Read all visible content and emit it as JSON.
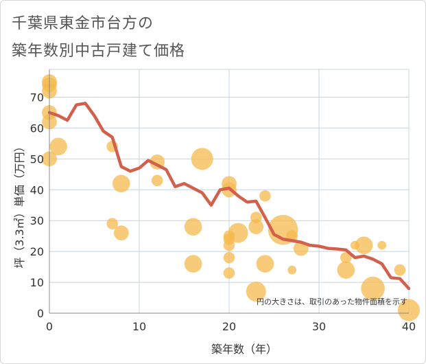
{
  "chart_data": {
    "type": "scatter",
    "title_lines": [
      "千葉県東金市台方の",
      "築年数別中古戸建て価格"
    ],
    "xlabel": "築年数（年）",
    "ylabel": "坪（3.3㎡）単価（万円）",
    "xlim": [
      0,
      40
    ],
    "ylim": [
      0,
      79
    ],
    "x_ticks": [
      0,
      10,
      20,
      30,
      40
    ],
    "y_ticks": [
      0,
      10,
      20,
      30,
      40,
      50,
      60,
      70
    ],
    "grid": true,
    "note": "円の大きさは、取引のあった物件面積を示す",
    "colors": {
      "bubble": "#f5b94d",
      "line": "#d2604c",
      "grid": "#c5d3e0",
      "axis": "#888888"
    },
    "series": [
      {
        "type": "bubble",
        "points": [
          {
            "x": 0,
            "y": 75,
            "size": 2
          },
          {
            "x": 0,
            "y": 74,
            "size": 2
          },
          {
            "x": 0,
            "y": 72,
            "size": 2
          },
          {
            "x": 0,
            "y": 65,
            "size": 2
          },
          {
            "x": 0,
            "y": 62,
            "size": 2
          },
          {
            "x": 0,
            "y": 50,
            "size": 2
          },
          {
            "x": 1,
            "y": 54,
            "size": 3
          },
          {
            "x": 7,
            "y": 54,
            "size": 1
          },
          {
            "x": 7,
            "y": 29,
            "size": 1
          },
          {
            "x": 8,
            "y": 42,
            "size": 3
          },
          {
            "x": 8,
            "y": 26,
            "size": 2
          },
          {
            "x": 12,
            "y": 49,
            "size": 2
          },
          {
            "x": 12,
            "y": 43,
            "size": 1
          },
          {
            "x": 16,
            "y": 28,
            "size": 3
          },
          {
            "x": 16,
            "y": 16,
            "size": 3
          },
          {
            "x": 17,
            "y": 50,
            "size": 5
          },
          {
            "x": 20,
            "y": 42,
            "size": 2
          },
          {
            "x": 20,
            "y": 40,
            "size": 2
          },
          {
            "x": 20,
            "y": 25,
            "size": 1
          },
          {
            "x": 20,
            "y": 24,
            "size": 1
          },
          {
            "x": 20,
            "y": 22,
            "size": 1
          },
          {
            "x": 20,
            "y": 18,
            "size": 1
          },
          {
            "x": 20,
            "y": 13,
            "size": 1
          },
          {
            "x": 21,
            "y": 26,
            "size": 4
          },
          {
            "x": 23,
            "y": 31,
            "size": 1
          },
          {
            "x": 23,
            "y": 28,
            "size": 2
          },
          {
            "x": 23,
            "y": 7,
            "size": 4
          },
          {
            "x": 24,
            "y": 38,
            "size": 1
          },
          {
            "x": 24,
            "y": 16,
            "size": 3
          },
          {
            "x": 26,
            "y": 27,
            "size": 10
          },
          {
            "x": 27,
            "y": 25,
            "size": 1
          },
          {
            "x": 27,
            "y": 14,
            "size": 0.5
          },
          {
            "x": 28,
            "y": 21,
            "size": 2
          },
          {
            "x": 33,
            "y": 18,
            "size": 1
          },
          {
            "x": 33,
            "y": 14,
            "size": 3
          },
          {
            "x": 34,
            "y": 22,
            "size": 0.5
          },
          {
            "x": 35,
            "y": 22,
            "size": 3
          },
          {
            "x": 36,
            "y": 8,
            "size": 6
          },
          {
            "x": 37,
            "y": 22,
            "size": 0.5
          },
          {
            "x": 39,
            "y": 14,
            "size": 1
          },
          {
            "x": 40,
            "y": 1,
            "size": 5
          }
        ]
      },
      {
        "type": "line",
        "x": [
          0,
          1,
          2,
          3,
          4,
          5,
          6,
          7,
          8,
          9,
          10,
          11,
          12,
          13,
          14,
          15,
          16,
          17,
          18,
          19,
          20,
          21,
          22,
          23,
          24,
          25,
          26,
          27,
          28,
          29,
          30,
          31,
          32,
          33,
          34,
          35,
          36,
          37,
          38,
          39,
          40
        ],
        "y": [
          65,
          64,
          62.5,
          67.5,
          68,
          64,
          59,
          57,
          47.5,
          46,
          47,
          49.5,
          48,
          46.5,
          41,
          42,
          40.5,
          39,
          35,
          40,
          40.5,
          38,
          36,
          36.3,
          31,
          25.5,
          24,
          23.5,
          23,
          22,
          21.7,
          21,
          20.8,
          20.5,
          18,
          18.5,
          17.5,
          16,
          11.5,
          11.2,
          8
        ]
      }
    ]
  }
}
